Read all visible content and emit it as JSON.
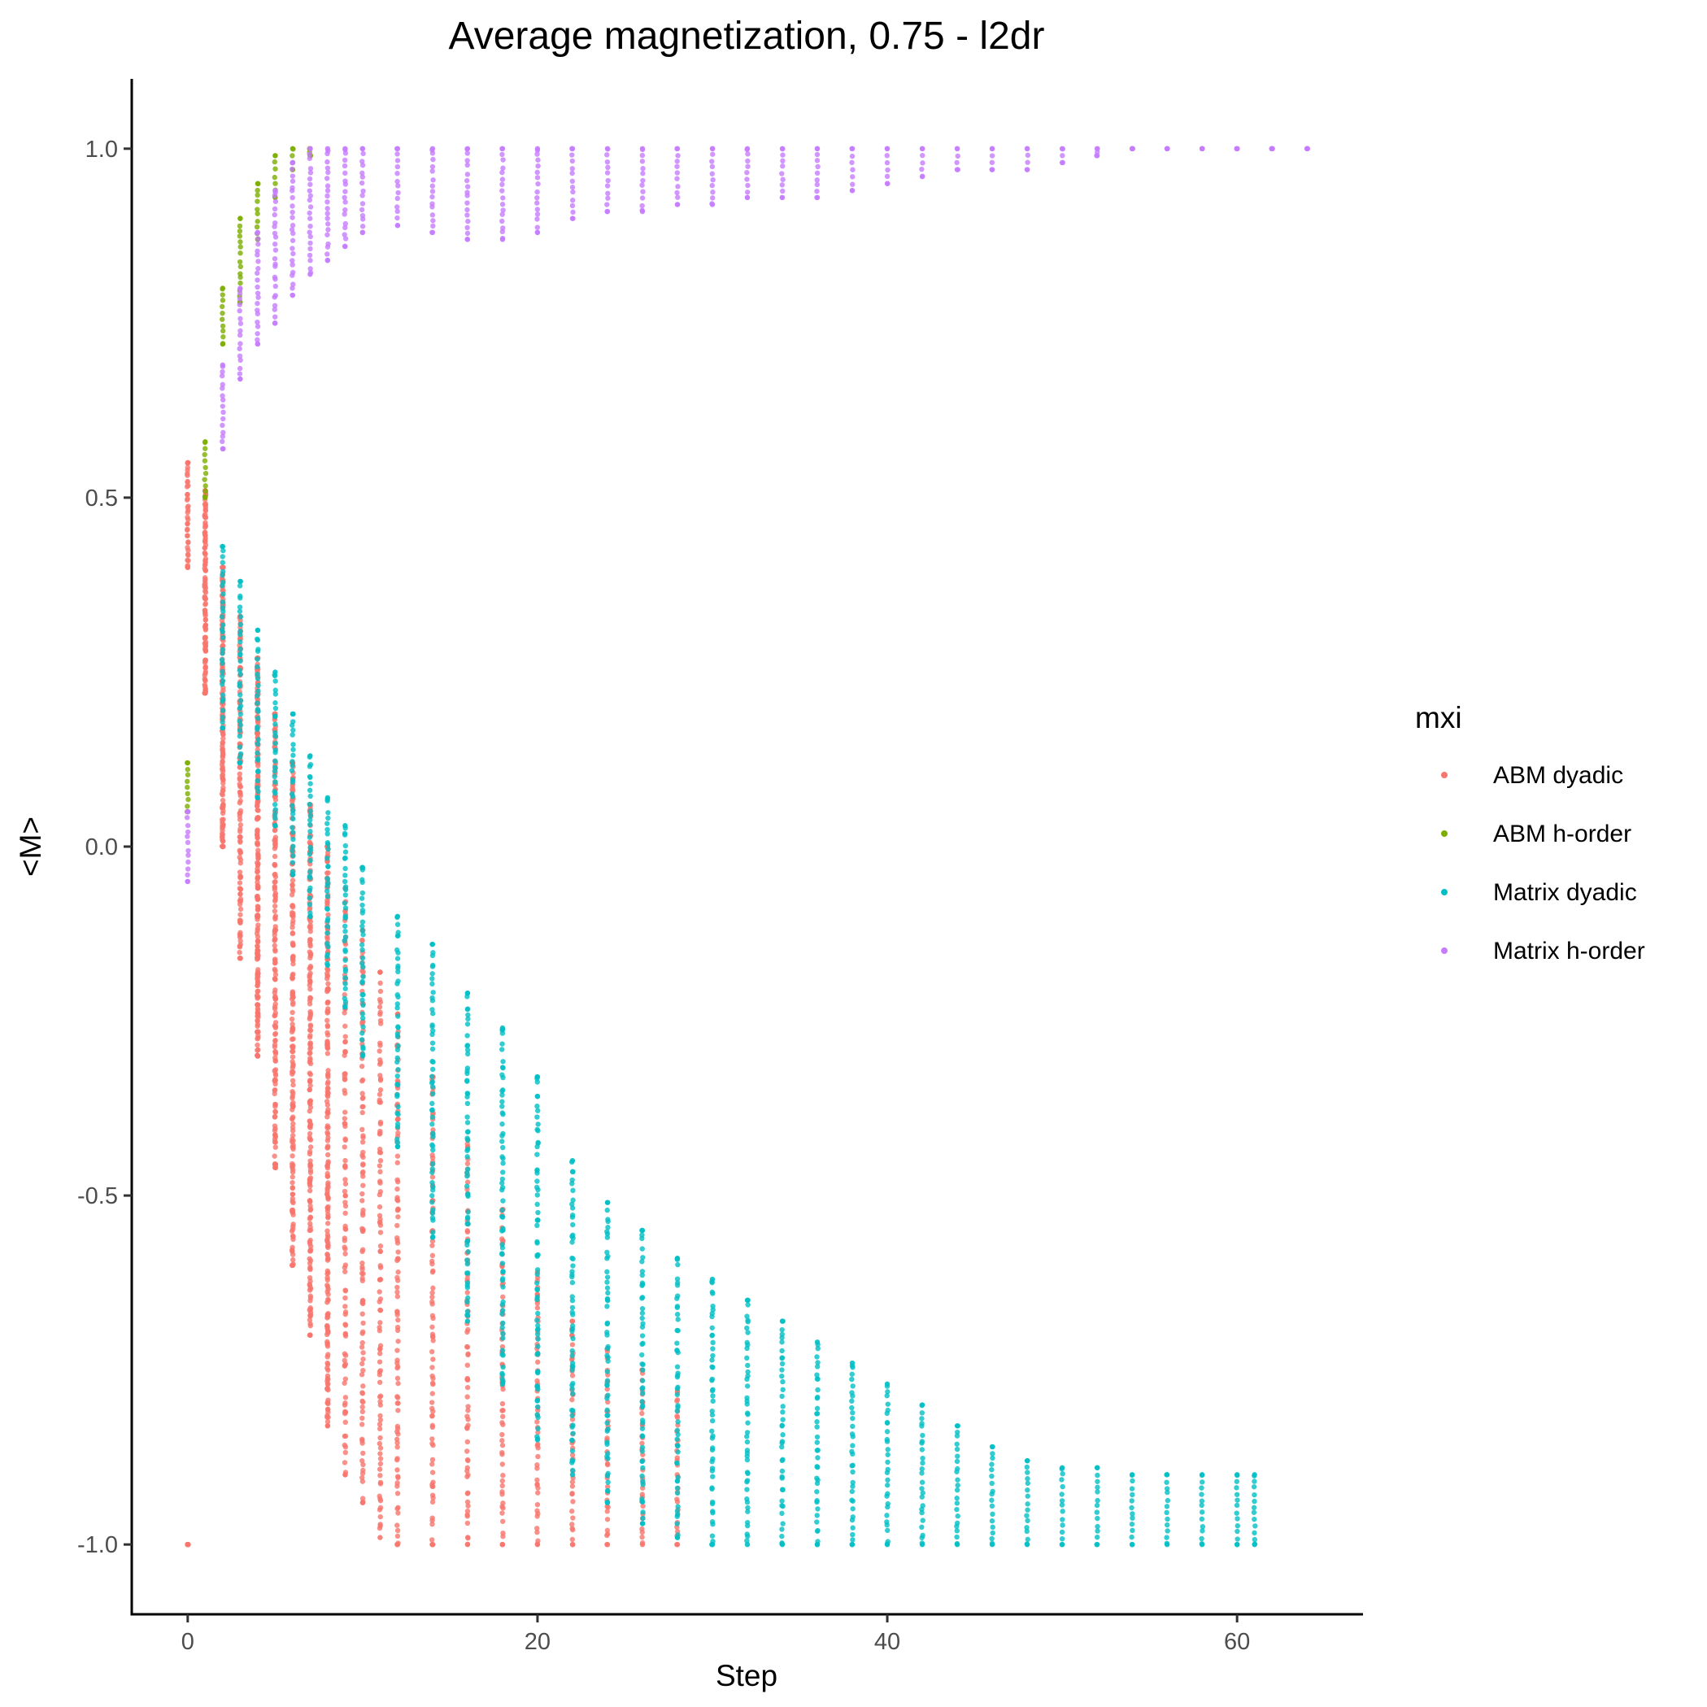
{
  "chart_data": {
    "type": "scatter",
    "title": "Average magnetization, 0.75 - l2dr",
    "xlabel": "Step",
    "ylabel": "<M>",
    "xlim": [
      -3.2,
      67.2
    ],
    "ylim": [
      -1.1,
      1.1
    ],
    "x_ticks": [
      0,
      20,
      40,
      60
    ],
    "x_tick_labels": [
      "0",
      "20",
      "40",
      "60"
    ],
    "y_ticks": [
      -1.0,
      -0.5,
      0.0,
      0.5,
      1.0
    ],
    "y_tick_labels": [
      "-1.0",
      "-0.5",
      "0.0",
      "0.5",
      "1.0"
    ],
    "grid": false,
    "legend": {
      "title": "mxi",
      "position": "right"
    },
    "series": [
      {
        "name": "ABM dyadic",
        "color": "#F8766D",
        "x": [
          0,
          0,
          0,
          0,
          1,
          1,
          1,
          2,
          2,
          2,
          3,
          3,
          4,
          4,
          4,
          5,
          5,
          6,
          6,
          7,
          7,
          8,
          8,
          9,
          10,
          11,
          12,
          14,
          16,
          18,
          20,
          22,
          24,
          26,
          28
        ],
        "y_min": [
          0.4,
          0.4,
          -1.0,
          -1.0,
          0.22,
          0.22,
          0.22,
          0.0,
          0.0,
          0.0,
          -0.16,
          -0.16,
          -0.3,
          -0.3,
          -0.3,
          -0.46,
          -0.46,
          -0.6,
          -0.6,
          -0.7,
          -0.7,
          -0.83,
          -0.83,
          -0.9,
          -0.94,
          -0.99,
          -1.0,
          -1.0,
          -1.0,
          -1.0,
          -1.0,
          -1.0,
          -1.0,
          -1.0,
          -1.0
        ],
        "y_max": [
          0.55,
          0.55,
          -1.0,
          -1.0,
          0.51,
          0.51,
          0.51,
          0.4,
          0.4,
          0.4,
          0.33,
          0.33,
          0.27,
          0.27,
          0.27,
          0.19,
          0.19,
          0.12,
          0.12,
          0.06,
          0.06,
          0.0,
          0.0,
          -0.06,
          -0.12,
          -0.18,
          -0.24,
          -0.33,
          -0.42,
          -0.52,
          -0.61,
          -0.68,
          -0.72,
          -0.75,
          -0.78
        ]
      },
      {
        "name": "ABM h-order",
        "color": "#7CAE00",
        "x": [
          0,
          1,
          2,
          3,
          4,
          5,
          6,
          7
        ],
        "y_min": [
          0.05,
          0.5,
          0.72,
          0.78,
          0.87,
          0.93,
          0.97,
          0.99
        ],
        "y_max": [
          0.12,
          0.58,
          0.8,
          0.9,
          0.95,
          0.99,
          1.0,
          1.0
        ]
      },
      {
        "name": "Matrix dyadic",
        "color": "#00BFC4",
        "x": [
          2,
          3,
          4,
          5,
          6,
          7,
          8,
          9,
          10,
          12,
          14,
          16,
          18,
          20,
          22,
          24,
          26,
          28,
          30,
          32,
          34,
          36,
          38,
          40,
          42,
          44,
          46,
          48,
          50,
          52,
          54,
          56,
          58,
          60,
          61
        ],
        "y_min": [
          0.17,
          0.12,
          0.07,
          0.03,
          -0.04,
          -0.1,
          -0.17,
          -0.23,
          -0.3,
          -0.43,
          -0.56,
          -0.68,
          -0.77,
          -0.85,
          -0.9,
          -0.94,
          -0.97,
          -0.99,
          -1.0,
          -1.0,
          -1.0,
          -1.0,
          -1.0,
          -1.0,
          -1.0,
          -1.0,
          -1.0,
          -1.0,
          -1.0,
          -1.0,
          -1.0,
          -1.0,
          -1.0,
          -1.0,
          -1.0
        ],
        "y_max": [
          0.43,
          0.38,
          0.31,
          0.25,
          0.19,
          0.13,
          0.07,
          0.03,
          -0.03,
          -0.1,
          -0.14,
          -0.21,
          -0.26,
          -0.33,
          -0.45,
          -0.51,
          -0.55,
          -0.59,
          -0.62,
          -0.65,
          -0.68,
          -0.71,
          -0.74,
          -0.77,
          -0.8,
          -0.83,
          -0.86,
          -0.88,
          -0.89,
          -0.89,
          -0.9,
          -0.9,
          -0.9,
          -0.9,
          -0.9
        ]
      },
      {
        "name": "Matrix h-order",
        "color": "#C77CFF",
        "x": [
          0,
          2,
          3,
          4,
          5,
          6,
          7,
          8,
          9,
          10,
          12,
          14,
          16,
          18,
          20,
          22,
          24,
          26,
          28,
          30,
          32,
          34,
          36,
          38,
          40,
          42,
          44,
          46,
          48,
          50,
          52,
          54,
          56,
          58,
          60,
          62,
          64
        ],
        "y_min": [
          -0.05,
          0.57,
          0.67,
          0.72,
          0.75,
          0.79,
          0.82,
          0.84,
          0.86,
          0.88,
          0.89,
          0.88,
          0.87,
          0.87,
          0.88,
          0.9,
          0.91,
          0.91,
          0.92,
          0.92,
          0.93,
          0.93,
          0.93,
          0.94,
          0.95,
          0.96,
          0.97,
          0.97,
          0.97,
          0.98,
          0.99,
          1.0,
          1.0,
          1.0,
          1.0,
          1.0,
          1.0
        ],
        "y_max": [
          0.05,
          0.69,
          0.8,
          0.88,
          0.94,
          0.98,
          1.0,
          1.0,
          1.0,
          1.0,
          1.0,
          1.0,
          1.0,
          1.0,
          1.0,
          1.0,
          1.0,
          1.0,
          1.0,
          1.0,
          1.0,
          1.0,
          1.0,
          1.0,
          1.0,
          1.0,
          1.0,
          1.0,
          1.0,
          1.0,
          1.0,
          1.0,
          1.0,
          1.0,
          1.0,
          1.0,
          1.0
        ]
      }
    ]
  }
}
